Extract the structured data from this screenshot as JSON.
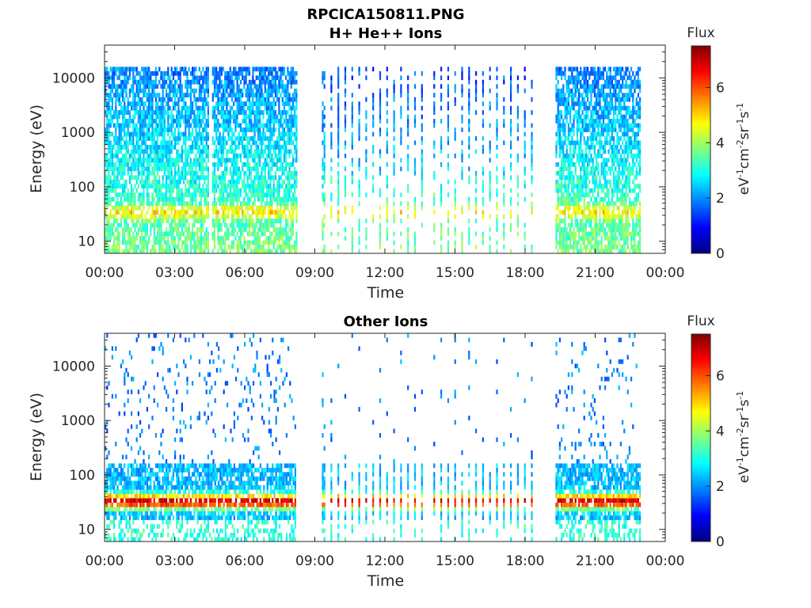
{
  "chart_data": {
    "title": "RPCICA150811.PNG",
    "panels": [
      {
        "type": "heatmap",
        "title": "H+ He++ Ions",
        "xlabel": "Time",
        "ylabel": "Energy (eV)",
        "x_range_hours": [
          0,
          24
        ],
        "x_ticks": [
          "00:00",
          "03:00",
          "06:00",
          "09:00",
          "12:00",
          "15:00",
          "18:00",
          "21:00",
          "00:00"
        ],
        "y_scale": "log",
        "y_range": [
          6,
          40000
        ],
        "y_ticks": [
          10,
          100,
          1000,
          10000
        ],
        "y_tick_labels": [
          "10",
          "100",
          "1000",
          "10000"
        ],
        "colorbar": {
          "label": "Flux",
          "unit": "eV-1cm-2sr-1s-1",
          "range": [
            0,
            7.5
          ],
          "ticks": [
            "0",
            "2",
            "4",
            "6"
          ]
        },
        "data_segments_hours": [
          [
            0.0,
            4.4
          ],
          [
            4.6,
            8.2
          ],
          [
            9.3,
            18.4
          ],
          [
            19.3,
            22.9
          ]
        ],
        "gaps_hours": [
          [
            4.4,
            4.6
          ],
          [
            8.2,
            9.3
          ],
          [
            18.4,
            19.3
          ],
          [
            22.9,
            24.0
          ]
        ],
        "max_energy_eV": [
          15000,
          15000,
          15000,
          15000
        ]
      },
      {
        "type": "heatmap",
        "title": "Other Ions",
        "xlabel": "Time",
        "ylabel": "Energy (eV)",
        "x_range_hours": [
          0,
          24
        ],
        "x_ticks": [
          "00:00",
          "03:00",
          "06:00",
          "09:00",
          "12:00",
          "15:00",
          "18:00",
          "21:00",
          "00:00"
        ],
        "y_scale": "log",
        "y_range": [
          6,
          40000
        ],
        "y_ticks": [
          10,
          100,
          1000,
          10000
        ],
        "y_tick_labels": [
          "10",
          "100",
          "1000",
          "10000"
        ],
        "colorbar": {
          "label": "Flux",
          "unit": "eV-1cm-2sr-1s-1",
          "range": [
            0,
            7.5
          ],
          "ticks": [
            "0",
            "2",
            "4",
            "6"
          ]
        },
        "data_segments_hours": [
          [
            0.0,
            8.2
          ],
          [
            9.3,
            18.4
          ],
          [
            19.3,
            22.9
          ]
        ],
        "gaps_hours": [
          [
            8.2,
            9.3
          ],
          [
            18.4,
            19.3
          ],
          [
            22.9,
            24.0
          ]
        ],
        "peak_band_eV": [
          25,
          45
        ]
      }
    ]
  }
}
